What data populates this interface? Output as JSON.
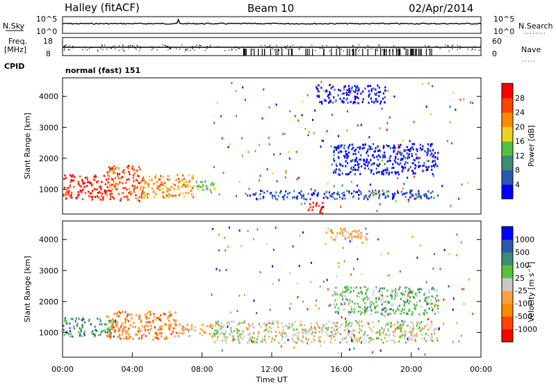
{
  "header": {
    "station": "Halley (fitACF)",
    "beam": "Beam 10",
    "date": "02/Apr/2014"
  },
  "summary": {
    "nsky_label": "N.Sky",
    "nsearch_label": "N.Search",
    "freq_label": "Freq.",
    "freq_unit": "[MHz]",
    "nave_label": "Nave",
    "cpid_label": "CPID",
    "cpid_value": "normal (fast) 151",
    "nsky_ticks": [
      "10^5",
      "10^0"
    ],
    "nsearch_ticks": [
      "10^5",
      "10^0"
    ],
    "freq_ticks": [
      "18",
      "8"
    ],
    "nave_ticks": [
      "60",
      "0"
    ]
  },
  "chart_data": [
    {
      "type": "heatmap",
      "name": "power",
      "ylabel": "Slant Range [km]",
      "xlabel": "",
      "colorbar_label": "Power [dB]",
      "xlim": [
        0,
        24
      ],
      "ylim": [
        200,
        4600
      ],
      "yticks": [
        "4000",
        "3000",
        "2000",
        "1000"
      ],
      "colorbar_ticks": [
        "28",
        "24",
        "20",
        "16",
        "12",
        "8",
        "4"
      ],
      "colors": [
        "#0000ff",
        "#2a5ab0",
        "#3f8a78",
        "#55c040",
        "#f0d020",
        "#ff8a00",
        "#ff4400",
        "#ff0000"
      ],
      "regions": [
        {
          "x": [
            0.0,
            2.5
          ],
          "y": [
            700,
            1500
          ],
          "level": 7
        },
        {
          "x": [
            2.5,
            4.5
          ],
          "y": [
            650,
            1800
          ],
          "level": 6
        },
        {
          "x": [
            4.5,
            7.5
          ],
          "y": [
            750,
            1500
          ],
          "level": 5
        },
        {
          "x": [
            7.5,
            8.7
          ],
          "y": [
            900,
            1300
          ],
          "level": 3
        },
        {
          "x": [
            10.5,
            21.5
          ],
          "y": [
            700,
            1000
          ],
          "level": 1
        },
        {
          "x": [
            14.0,
            15.0
          ],
          "y": [
            250,
            600
          ],
          "level": 7
        },
        {
          "x": [
            15.5,
            21.5
          ],
          "y": [
            1500,
            2500
          ],
          "level": 0
        },
        {
          "x": [
            14.5,
            18.5
          ],
          "y": [
            3800,
            4400
          ],
          "level": 0
        }
      ]
    },
    {
      "type": "heatmap",
      "name": "velocity",
      "ylabel": "Slant Range [km]",
      "xlabel": "Time UT",
      "colorbar_label": "Velocity [m s^-1]",
      "xlim": [
        0,
        24
      ],
      "ylim": [
        200,
        4600
      ],
      "xticks": [
        "00:00",
        "04:00",
        "08:00",
        "12:00",
        "16:00",
        "20:00",
        "00:00"
      ],
      "yticks": [
        "4000",
        "3000",
        "2000",
        "1000"
      ],
      "colorbar_ticks": [
        "1000",
        "500",
        "100",
        "25",
        "-25",
        "-100",
        "-500",
        "-1000"
      ],
      "colors": [
        "#ff0000",
        "#ff4400",
        "#ff8a00",
        "#ffa040",
        "#c8c8c8",
        "#55c040",
        "#3f8a78",
        "#2a5ab0",
        "#0000ff"
      ],
      "regions": [
        {
          "x": [
            0.0,
            3.0
          ],
          "y": [
            900,
            1500
          ],
          "level": 6
        },
        {
          "x": [
            2.5,
            6.5
          ],
          "y": [
            800,
            1700
          ],
          "level": 2
        },
        {
          "x": [
            6.5,
            8.5
          ],
          "y": [
            900,
            1300
          ],
          "level": 3
        },
        {
          "x": [
            8.5,
            21.5
          ],
          "y": [
            700,
            1400
          ],
          "level": 4
        },
        {
          "x": [
            15.5,
            21.5
          ],
          "y": [
            1600,
            2500
          ],
          "level": 5
        },
        {
          "x": [
            15.0,
            17.5
          ],
          "y": [
            4000,
            4400
          ],
          "level": 3
        }
      ]
    }
  ]
}
